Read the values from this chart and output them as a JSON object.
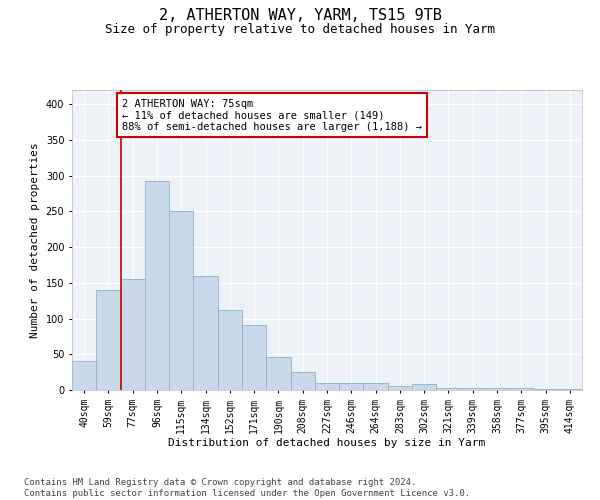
{
  "title": "2, ATHERTON WAY, YARM, TS15 9TB",
  "subtitle": "Size of property relative to detached houses in Yarm",
  "xlabel": "Distribution of detached houses by size in Yarm",
  "ylabel": "Number of detached properties",
  "categories": [
    "40sqm",
    "59sqm",
    "77sqm",
    "96sqm",
    "115sqm",
    "134sqm",
    "152sqm",
    "171sqm",
    "190sqm",
    "208sqm",
    "227sqm",
    "246sqm",
    "264sqm",
    "283sqm",
    "302sqm",
    "321sqm",
    "339sqm",
    "358sqm",
    "377sqm",
    "395sqm",
    "414sqm"
  ],
  "values": [
    40,
    140,
    155,
    293,
    251,
    160,
    112,
    91,
    46,
    25,
    10,
    10,
    10,
    5,
    8,
    3,
    3,
    3,
    3,
    2,
    2
  ],
  "bar_color": "#c9d9ea",
  "bar_edge_color": "#8ab4cc",
  "vline_color": "#cc0000",
  "ann_line1": "2 ATHERTON WAY: 75sqm",
  "ann_line2": "← 11% of detached houses are smaller (149)",
  "ann_line3": "88% of semi-detached houses are larger (1,188) →",
  "ann_edge_color": "#cc0000",
  "ann_face_color": "white",
  "ylim": [
    0,
    420
  ],
  "yticks": [
    0,
    50,
    100,
    150,
    200,
    250,
    300,
    350,
    400
  ],
  "plot_bg_color": "#edf2f8",
  "grid_color": "white",
  "title_fontsize": 11,
  "subtitle_fontsize": 9,
  "tick_fontsize": 7,
  "ylabel_fontsize": 8,
  "xlabel_fontsize": 8,
  "ann_fontsize": 7.5,
  "footer_fontsize": 6.5,
  "footer": "Contains HM Land Registry data © Crown copyright and database right 2024.\nContains public sector information licensed under the Open Government Licence v3.0."
}
